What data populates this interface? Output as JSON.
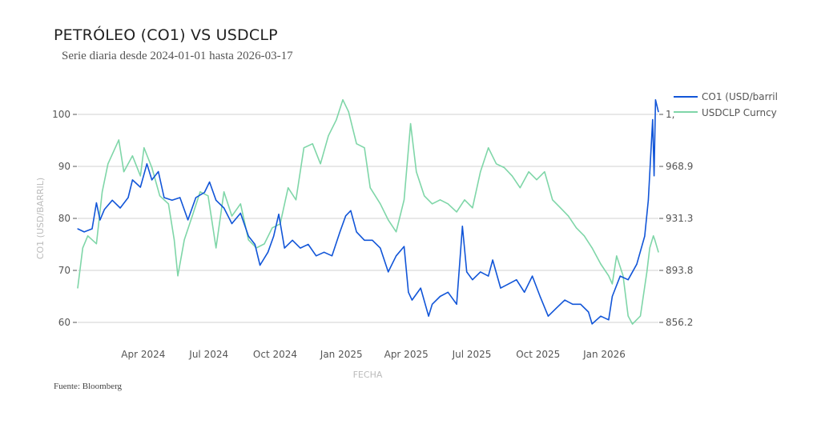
{
  "title": "PETRÓLEO (CO1) VS USDCLP",
  "subtitle": "Serie diaria desde 2024-01-01 hasta 2026-03-17",
  "source": "Fuente: Bloomberg",
  "chart_data": {
    "type": "line",
    "title": "PETRÓLEO (CO1) VS USDCLP",
    "xlabel": "FECHA",
    "ylabel": "CO1 (USD/BARRIL)",
    "x_unit": "days since 2024-01-01",
    "xlim": [
      0,
      806
    ],
    "x_ticks": [
      {
        "day": 91,
        "label": "Apr 2024"
      },
      {
        "day": 182,
        "label": "Jul 2024"
      },
      {
        "day": 274,
        "label": "Oct 2024"
      },
      {
        "day": 366,
        "label": "Jan 2025"
      },
      {
        "day": 456,
        "label": "Apr 2025"
      },
      {
        "day": 547,
        "label": "Jul 2025"
      },
      {
        "day": 639,
        "label": "Oct 2025"
      },
      {
        "day": 731,
        "label": "Jan 2026"
      }
    ],
    "ylim_left": [
      60,
      100
    ],
    "y_ticks_left": [
      "60",
      "70",
      "80",
      "90",
      "100"
    ],
    "ylim_right": [
      856.2,
      1006.4
    ],
    "y_ticks_right": [
      "856.2",
      "893.8",
      "931.3",
      "968.9",
      "1,"
    ],
    "grid": true,
    "legend": "top-right",
    "colors": {
      "co1": "#1155d8",
      "usdclp": "#7fd6a8"
    },
    "series": [
      {
        "name": "CO1 (USD/barril",
        "axis": "left",
        "x": [
          0,
          9,
          20,
          26,
          31,
          37,
          48,
          59,
          70,
          76,
          87,
          96,
          103,
          112,
          120,
          131,
          142,
          153,
          164,
          176,
          183,
          192,
          203,
          214,
          226,
          237,
          246,
          253,
          264,
          272,
          279,
          287,
          298,
          309,
          320,
          331,
          342,
          353,
          364,
          372,
          379,
          387,
          398,
          409,
          420,
          431,
          442,
          453,
          459,
          464,
          476,
          487,
          492,
          503,
          514,
          526,
          531,
          534,
          540,
          548,
          559,
          570,
          576,
          587,
          598,
          609,
          620,
          631,
          642,
          653,
          664,
          676,
          687,
          698,
          709,
          714,
          726,
          737,
          742,
          753,
          764,
          776,
          787,
          792,
          798,
          800,
          802,
          806
        ],
        "values": [
          78,
          77.4,
          78,
          83,
          79.7,
          81.7,
          83.5,
          82,
          84,
          87.4,
          86,
          90.5,
          87.4,
          89,
          84,
          83.5,
          84,
          79.7,
          84,
          85,
          87,
          83.5,
          82,
          79,
          81,
          76.6,
          75,
          71,
          73.5,
          76.6,
          80.8,
          74.3,
          75.8,
          74.3,
          75,
          72.8,
          73.5,
          72.8,
          77.4,
          80.5,
          81.5,
          77.4,
          75.8,
          75.8,
          74.3,
          69.7,
          72.8,
          74.6,
          65.8,
          64.3,
          66.6,
          61.2,
          63.5,
          65,
          65.8,
          63.5,
          72.8,
          78.5,
          69.7,
          68.2,
          69.7,
          68.9,
          72,
          66.6,
          67.4,
          68.2,
          65.8,
          68.9,
          64.9,
          61.2,
          62.7,
          64.3,
          63.5,
          63.5,
          62,
          59.7,
          61.2,
          60.5,
          65,
          68.9,
          68.2,
          71.2,
          76.6,
          83.5,
          99,
          88.2,
          102.8,
          100.5
        ]
      },
      {
        "name": "USDCLP Curncy",
        "axis": "right",
        "x": [
          0,
          7,
          14,
          26,
          34,
          42,
          57,
          64,
          76,
          87,
          92,
          103,
          114,
          126,
          134,
          139,
          148,
          159,
          170,
          181,
          192,
          203,
          214,
          226,
          237,
          248,
          259,
          270,
          281,
          292,
          303,
          314,
          326,
          337,
          348,
          359,
          368,
          376,
          387,
          398,
          406,
          420,
          431,
          442,
          453,
          462,
          470,
          481,
          492,
          503,
          514,
          526,
          537,
          548,
          559,
          570,
          581,
          592,
          603,
          614,
          626,
          637,
          648,
          659,
          670,
          681,
          692,
          703,
          714,
          726,
          737,
          742,
          748,
          757,
          764,
          770,
          781,
          790,
          794,
          799,
          801,
          806
        ],
        "values": [
          881,
          910,
          918.7,
          913,
          950.5,
          970.7,
          988,
          965,
          976.5,
          962,
          982.3,
          968,
          947.6,
          941.8,
          915.8,
          889.8,
          915.8,
          933,
          950.5,
          947.6,
          910,
          950.5,
          933,
          941.8,
          915.8,
          910,
          912.9,
          924.5,
          927.4,
          953.4,
          944.7,
          982.3,
          985.2,
          970.7,
          991,
          1002.5,
          1017,
          1008.3,
          985.2,
          982.3,
          953.4,
          941.8,
          930.2,
          921.6,
          944.7,
          999.7,
          965,
          947.6,
          941.8,
          944.7,
          941.8,
          936,
          944.7,
          938.9,
          965,
          982.3,
          970.7,
          968,
          962,
          953.4,
          965,
          959.2,
          965,
          944.7,
          938.9,
          933,
          924.5,
          918.7,
          910,
          898.4,
          889.8,
          884,
          904.2,
          889.8,
          860.8,
          855,
          860.8,
          892.6,
          910,
          918.7,
          915.8,
          907
        ]
      }
    ]
  }
}
